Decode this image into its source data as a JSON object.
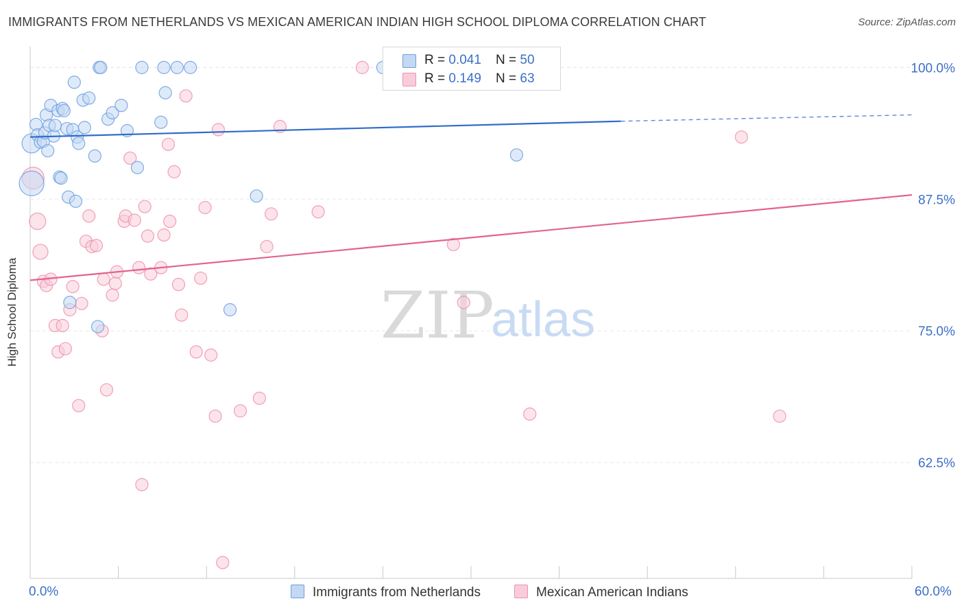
{
  "header": {
    "title": "IMMIGRANTS FROM NETHERLANDS VS MEXICAN AMERICAN INDIAN HIGH SCHOOL DIPLOMA CORRELATION CHART",
    "source": "Source: ZipAtlas.com"
  },
  "colors": {
    "blue": "#6a9ee0",
    "blue_fill": "#c4d8f4",
    "blue_line": "#2f6cc8",
    "pink": "#ef8fae",
    "pink_fill": "#f8cdd9",
    "pink_line": "#e2628f",
    "axis_text": "#3b6fc8",
    "grid": "#e3e3e3"
  },
  "stats_legend": {
    "rows": [
      {
        "r_label": "R = ",
        "r_value": "0.041",
        "n_label": "N = ",
        "n_value": "50"
      },
      {
        "r_label": "R = ",
        "r_value": "0.149",
        "n_label": "N = ",
        "n_value": "63"
      }
    ]
  },
  "bottom_legend": {
    "series1": "Immigrants from Netherlands",
    "series2": "Mexican American Indians"
  },
  "watermark": {
    "zip": "ZIP",
    "atlas": "atlas"
  },
  "chart_data": {
    "type": "scatter",
    "title": "IMMIGRANTS FROM NETHERLANDS VS MEXICAN AMERICAN INDIAN HIGH SCHOOL DIPLOMA CORRELATION CHART",
    "xlabel": "",
    "ylabel": "High School Diploma",
    "xlim": [
      0,
      60
    ],
    "ylim": [
      51.5,
      102.5
    ],
    "x_tick_labels": [
      "0.0%",
      "60.0%"
    ],
    "y_ticks": [
      62.5,
      75.0,
      87.5,
      100.0
    ],
    "y_tick_labels": [
      "62.5%",
      "75.0%",
      "87.5%",
      "100.0%"
    ],
    "grid": true,
    "legend_position": "top-center",
    "series": [
      {
        "name": "Immigrants from Netherlands",
        "color": "#6a9ee0",
        "trend": {
          "x0": 0,
          "y0": 93.4,
          "x1": 40.2,
          "y1": 94.9,
          "dashed_to_x": 60,
          "dashed_to_y": 95.5
        },
        "points": [
          [
            0.1,
            92.8,
            14
          ],
          [
            0.1,
            89.0,
            18
          ],
          [
            0.4,
            94.6,
            9
          ],
          [
            0.5,
            93.6,
            9
          ],
          [
            0.7,
            92.9,
            9
          ],
          [
            0.9,
            93.0,
            9
          ],
          [
            1.0,
            93.8,
            9
          ],
          [
            1.1,
            95.5,
            9
          ],
          [
            1.2,
            92.1,
            9
          ],
          [
            1.3,
            94.5,
            9
          ],
          [
            1.4,
            96.4,
            9
          ],
          [
            1.6,
            93.5,
            9
          ],
          [
            1.7,
            94.5,
            9
          ],
          [
            1.9,
            95.9,
            9
          ],
          [
            2.0,
            89.6,
            9
          ],
          [
            2.1,
            89.5,
            9
          ],
          [
            2.2,
            96.1,
            9
          ],
          [
            2.3,
            95.9,
            9
          ],
          [
            2.5,
            94.2,
            9
          ],
          [
            2.6,
            87.7,
            9
          ],
          [
            2.7,
            77.7,
            9
          ],
          [
            2.9,
            94.1,
            9
          ],
          [
            3.0,
            98.6,
            9
          ],
          [
            3.1,
            87.3,
            9
          ],
          [
            3.2,
            93.4,
            9
          ],
          [
            3.3,
            92.8,
            9
          ],
          [
            3.6,
            96.9,
            9
          ],
          [
            3.7,
            94.3,
            9
          ],
          [
            4.0,
            97.1,
            9
          ],
          [
            4.4,
            91.6,
            9
          ],
          [
            4.6,
            75.4,
            9
          ],
          [
            4.7,
            100.0,
            9
          ],
          [
            4.8,
            100.0,
            9
          ],
          [
            5.3,
            95.1,
            9
          ],
          [
            5.6,
            95.7,
            9
          ],
          [
            6.2,
            96.4,
            9
          ],
          [
            6.6,
            94.0,
            9
          ],
          [
            7.3,
            90.5,
            9
          ],
          [
            7.6,
            100.0,
            9
          ],
          [
            8.9,
            94.8,
            9
          ],
          [
            9.1,
            100.0,
            9
          ],
          [
            9.2,
            97.6,
            9
          ],
          [
            10.0,
            100.0,
            9
          ],
          [
            10.9,
            100.0,
            9
          ],
          [
            13.6,
            77.0,
            9
          ],
          [
            15.4,
            87.8,
            9
          ],
          [
            24.0,
            100.0,
            9
          ],
          [
            33.1,
            91.7,
            9
          ]
        ]
      },
      {
        "name": "Mexican American Indians",
        "color": "#ef8fae",
        "trend": {
          "x0": 0,
          "y0": 79.8,
          "x1": 60,
          "y1": 87.9
        },
        "points": [
          [
            0.2,
            89.5,
            16
          ],
          [
            0.5,
            85.4,
            12
          ],
          [
            0.7,
            82.5,
            11
          ],
          [
            0.9,
            79.7,
            9
          ],
          [
            1.1,
            79.3,
            9
          ],
          [
            1.4,
            79.9,
            9
          ],
          [
            1.7,
            75.5,
            9
          ],
          [
            1.9,
            73.0,
            9
          ],
          [
            2.2,
            75.5,
            9
          ],
          [
            2.4,
            73.3,
            9
          ],
          [
            2.7,
            77.0,
            9
          ],
          [
            2.9,
            79.2,
            9
          ],
          [
            3.3,
            67.9,
            9
          ],
          [
            3.5,
            77.6,
            9
          ],
          [
            3.8,
            83.5,
            9
          ],
          [
            4.0,
            85.9,
            9
          ],
          [
            4.2,
            83.0,
            9
          ],
          [
            4.5,
            83.1,
            9
          ],
          [
            4.9,
            75.0,
            9
          ],
          [
            5.0,
            79.9,
            9
          ],
          [
            5.2,
            69.4,
            9
          ],
          [
            5.6,
            78.4,
            9
          ],
          [
            5.8,
            79.5,
            9
          ],
          [
            5.9,
            80.6,
            9
          ],
          [
            6.4,
            85.4,
            9
          ],
          [
            6.5,
            85.9,
            9
          ],
          [
            6.8,
            91.4,
            9
          ],
          [
            7.1,
            85.5,
            9
          ],
          [
            7.4,
            81.0,
            9
          ],
          [
            7.6,
            60.4,
            9
          ],
          [
            7.8,
            86.8,
            9
          ],
          [
            8.0,
            84.0,
            9
          ],
          [
            8.2,
            80.4,
            9
          ],
          [
            8.9,
            81.0,
            9
          ],
          [
            9.1,
            84.1,
            9
          ],
          [
            9.4,
            92.7,
            9
          ],
          [
            9.5,
            85.4,
            9
          ],
          [
            9.8,
            90.1,
            9
          ],
          [
            10.1,
            79.4,
            9
          ],
          [
            10.3,
            76.5,
            9
          ],
          [
            10.6,
            97.3,
            9
          ],
          [
            11.3,
            73.0,
            9
          ],
          [
            11.6,
            80.0,
            9
          ],
          [
            11.9,
            86.7,
            9
          ],
          [
            12.3,
            72.7,
            9
          ],
          [
            12.6,
            66.9,
            9
          ],
          [
            12.8,
            94.1,
            9
          ],
          [
            13.1,
            53.0,
            9
          ],
          [
            14.3,
            67.4,
            9
          ],
          [
            15.6,
            68.6,
            9
          ],
          [
            16.1,
            83.0,
            9
          ],
          [
            16.4,
            86.1,
            9
          ],
          [
            17.0,
            94.4,
            9
          ],
          [
            19.6,
            86.3,
            9
          ],
          [
            22.6,
            100.0,
            9
          ],
          [
            28.8,
            83.2,
            9
          ],
          [
            29.5,
            77.7,
            9
          ],
          [
            30.4,
            100.0,
            9
          ],
          [
            34.0,
            67.1,
            9
          ],
          [
            48.4,
            93.4,
            9
          ],
          [
            51.0,
            66.9,
            9
          ]
        ]
      }
    ]
  }
}
